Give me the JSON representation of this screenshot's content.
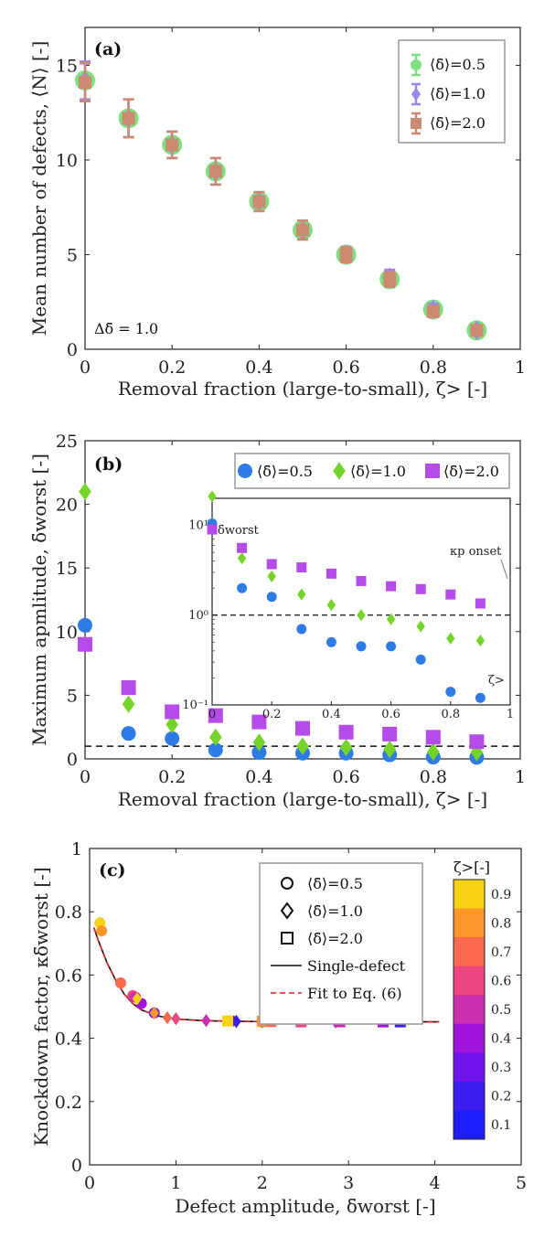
{
  "chart_data": [
    {
      "type": "scatter",
      "panel_label": "(a)",
      "xlabel": "Removal fraction (large-to-small), ζ> [-]",
      "ylabel": "Mean number of defects, ⟨N⟩ [-]",
      "xlim": [
        0,
        1
      ],
      "ylim": [
        0,
        17
      ],
      "xticks": [
        "0",
        "0.2",
        "0.4",
        "0.6",
        "0.8",
        "1"
      ],
      "xtick_values": [
        0,
        0.2,
        0.4,
        0.6,
        0.8,
        1
      ],
      "yticks": [
        "0",
        "5",
        "10",
        "15"
      ],
      "ytick_values": [
        0,
        5,
        10,
        15
      ],
      "annotation": "Δδ̄ = 1.0",
      "x": [
        0,
        0.1,
        0.2,
        0.3,
        0.4,
        0.5,
        0.6,
        0.7,
        0.8,
        0.9
      ],
      "series": [
        {
          "name": "⟨δ̄⟩=0.5",
          "marker": "circle",
          "color": "#7fe07f",
          "values": [
            14.2,
            12.2,
            10.8,
            9.4,
            7.8,
            6.3,
            5.0,
            3.7,
            2.1,
            1.0
          ],
          "err": [
            1.0,
            1.0,
            0.7,
            0.7,
            0.5,
            0.5,
            0.4,
            0.4,
            0.3,
            0.2
          ]
        },
        {
          "name": "⟨δ̄⟩=1.0",
          "marker": "diamond",
          "color": "#9b86f0",
          "values": [
            14.2,
            12.2,
            10.8,
            9.4,
            7.8,
            6.3,
            5.0,
            3.8,
            2.1,
            1.0
          ],
          "err": [
            1.0,
            1.0,
            0.7,
            0.7,
            0.5,
            0.5,
            0.4,
            0.4,
            0.3,
            0.2
          ]
        },
        {
          "name": "⟨δ̄⟩=2.0",
          "marker": "square",
          "color": "#cc8a72",
          "values": [
            14.1,
            12.2,
            10.8,
            9.4,
            7.8,
            6.3,
            5.0,
            3.7,
            2.0,
            1.0
          ],
          "err": [
            1.0,
            1.0,
            0.7,
            0.7,
            0.5,
            0.5,
            0.4,
            0.4,
            0.3,
            0.2
          ]
        }
      ]
    },
    {
      "type": "scatter",
      "panel_label": "(b)",
      "xlabel": "Removal fraction (large-to-small), ζ> [-]",
      "ylabel": "Maximum apmlitude, δ̄worst [-]",
      "xlim": [
        0,
        1
      ],
      "ylim": [
        0,
        25
      ],
      "xticks": [
        "0",
        "0.2",
        "0.4",
        "0.6",
        "0.8",
        "1"
      ],
      "xtick_values": [
        0,
        0.2,
        0.4,
        0.6,
        0.8,
        1
      ],
      "yticks": [
        "0",
        "5",
        "10",
        "15",
        "20",
        "25"
      ],
      "ytick_values": [
        0,
        5,
        10,
        15,
        20,
        25
      ],
      "reference_line": 1,
      "x": [
        0,
        0.1,
        0.2,
        0.3,
        0.4,
        0.5,
        0.6,
        0.7,
        0.8,
        0.9
      ],
      "series": [
        {
          "name": "⟨δ̄⟩=0.5",
          "marker": "circle",
          "color": "#2e7be6",
          "values": [
            10.5,
            2.0,
            1.6,
            0.7,
            0.5,
            0.45,
            0.45,
            0.32,
            0.14,
            0.12
          ]
        },
        {
          "name": "⟨δ̄⟩=1.0",
          "marker": "diamond",
          "color": "#74d42a",
          "values": [
            21.0,
            4.3,
            2.7,
            1.7,
            1.3,
            1.0,
            0.9,
            0.75,
            0.55,
            0.52
          ]
        },
        {
          "name": "⟨δ̄⟩=2.0",
          "marker": "square",
          "color": "#b54be8",
          "values": [
            9.0,
            5.6,
            3.7,
            3.4,
            2.9,
            2.4,
            2.1,
            1.95,
            1.7,
            1.35
          ]
        }
      ],
      "inset": {
        "scale": "log",
        "ylabel": "δ̄worst",
        "xlabel": "ζ>",
        "ylim": [
          0.1,
          20
        ],
        "yticks": [
          "10⁻¹",
          "10⁰",
          "10¹"
        ],
        "ytick_values": [
          0.1,
          1,
          10
        ],
        "xticks": [
          "0",
          "0.2",
          "0.4",
          "0.6",
          "0.8",
          "1"
        ],
        "xtick_values": [
          0,
          0.2,
          0.4,
          0.6,
          0.8,
          1
        ],
        "annotation": "κp onset"
      }
    },
    {
      "type": "scatter",
      "panel_label": "(c)",
      "xlabel": "Defect amplitude, δ̄worst [-]",
      "ylabel": "Knockdown factor, κδ̄worst [-]",
      "xlim": [
        0,
        5
      ],
      "ylim": [
        0,
        1
      ],
      "xticks": [
        "0",
        "1",
        "2",
        "3",
        "4",
        "5"
      ],
      "xtick_values": [
        0,
        1,
        2,
        3,
        4,
        5
      ],
      "yticks": [
        "0",
        "0.2",
        "0.4",
        "0.6",
        "0.8",
        "1"
      ],
      "ytick_values": [
        0,
        0.2,
        0.4,
        0.6,
        0.8,
        1
      ],
      "legend": [
        "⟨δ̄⟩=0.5",
        "⟨δ̄⟩=1.0",
        "⟨δ̄⟩=2.0",
        "Single-defect",
        "Fit to Eq. (6)"
      ],
      "colorbar_title": "ζ>[-]",
      "colorbar_ticks": [
        "0.1",
        "0.2",
        "0.3",
        "0.4",
        "0.5",
        "0.6",
        "0.7",
        "0.8",
        "0.9"
      ],
      "colorbar_tick_values": [
        0.1,
        0.2,
        0.3,
        0.4,
        0.5,
        0.6,
        0.7,
        0.8,
        0.9
      ],
      "curve_x": [
        0.05,
        0.1,
        0.2,
        0.3,
        0.4,
        0.5,
        0.6,
        0.8,
        1.0,
        1.3,
        1.6,
        2.0,
        2.5,
        3.0,
        3.5,
        4.05
      ],
      "curve_y": [
        0.75,
        0.71,
        0.64,
        0.585,
        0.54,
        0.51,
        0.49,
        0.47,
        0.461,
        0.456,
        0.454,
        0.453,
        0.452,
        0.452,
        0.452,
        0.452
      ],
      "series": [
        {
          "name": "⟨δ̄⟩=0.5",
          "marker": "circle",
          "points": [
            [
              0.12,
              0.765,
              0.9
            ],
            [
              0.14,
              0.74,
              0.8
            ],
            [
              0.36,
              0.575,
              0.7
            ],
            [
              0.5,
              0.535,
              0.6
            ],
            [
              0.53,
              0.53,
              0.5
            ],
            [
              0.6,
              0.51,
              0.4
            ],
            [
              0.75,
              0.48,
              0.3
            ],
            [
              1.65,
              0.455,
              0.2
            ],
            [
              2.0,
              0.452,
              0.1
            ]
          ]
        },
        {
          "name": "⟨δ̄⟩=1.0",
          "marker": "diamond",
          "points": [
            [
              0.55,
              0.525,
              0.9
            ],
            [
              0.75,
              0.48,
              0.8
            ],
            [
              0.9,
              0.465,
              0.7
            ],
            [
              1.0,
              0.462,
              0.6
            ],
            [
              1.35,
              0.456,
              0.5
            ],
            [
              1.7,
              0.454,
              0.4
            ],
            [
              2.85,
              0.452,
              0.3
            ],
            [
              1.7,
              0.453,
              0.2
            ]
          ]
        },
        {
          "name": "⟨δ̄⟩=2.0",
          "marker": "square",
          "points": [
            [
              1.6,
              0.455,
              0.9
            ],
            [
              2.0,
              0.454,
              0.8
            ],
            [
              2.1,
              0.453,
              0.7
            ],
            [
              2.45,
              0.452,
              0.6
            ],
            [
              2.9,
              0.452,
              0.5
            ],
            [
              3.4,
              0.452,
              0.4
            ],
            [
              3.6,
              0.452,
              0.2
            ]
          ]
        }
      ]
    }
  ]
}
